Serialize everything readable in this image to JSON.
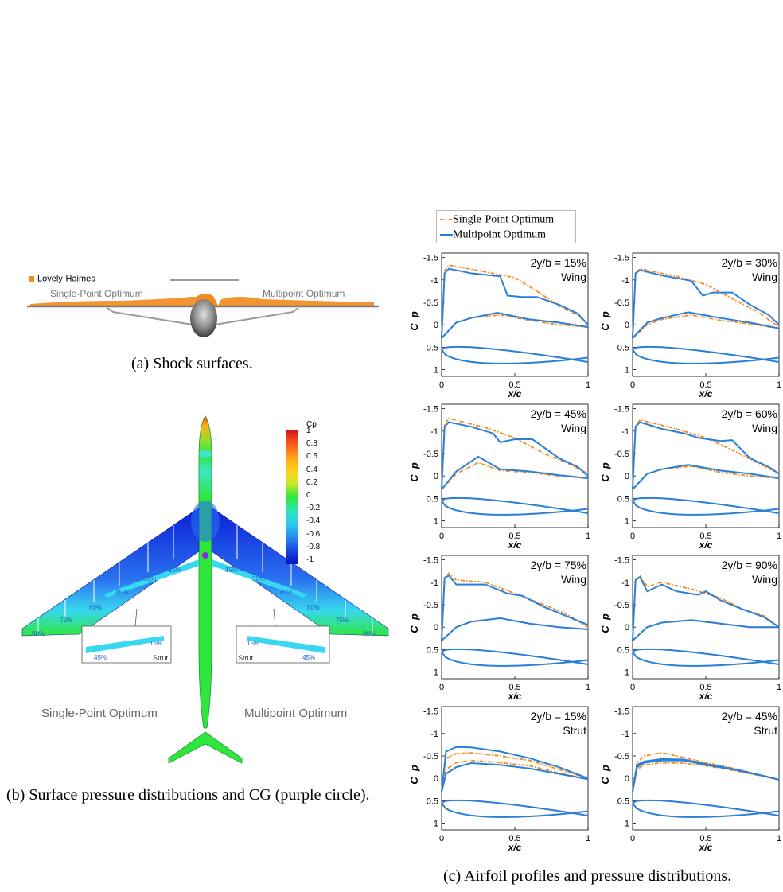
{
  "panel_a": {
    "legend_label": "Lovely-Haimes",
    "left_label": "Single-Point Optimum",
    "right_label": "Multipoint Optimum",
    "caption": "(a) Shock surfaces.",
    "colors": {
      "shock": "#f28a1e",
      "surface": "#9a9a9a"
    }
  },
  "panel_b": {
    "colorbar_title": "Cp",
    "colorbar_ticks": [
      "1",
      "0.8",
      "0.6",
      "0.4",
      "0.2",
      "0",
      "-0.2",
      "-0.4",
      "-0.6",
      "-0.8",
      "-1"
    ],
    "left_label": "Single-Point Optimum",
    "right_label": "Multipoint Optimum",
    "left_wing_stations": [
      "15%",
      "30%",
      "45%",
      "60%",
      "75%",
      "90%"
    ],
    "right_wing_stations": [
      "15%",
      "30%",
      "45%",
      "60%",
      "75%",
      "90%"
    ],
    "left_strut_stations": [
      "15%",
      "45%"
    ],
    "right_strut_stations": [
      "15%",
      "45%"
    ],
    "strut_label": "Strut",
    "caption": "(b) Surface pressure distributions and CG (purple circle).",
    "colors": {
      "cg": "#7e2fd8",
      "station": "#2563c9"
    }
  },
  "panel_c": {
    "caption": "(c) Airfoil profiles and pressure distributions.",
    "colors": {
      "single": "#f28a1e",
      "multi": "#2a7fd8"
    }
  },
  "chart_data": {
    "type": "line",
    "legend": [
      "Single-Point Optimum",
      "Multipoint Optimum"
    ],
    "legend_position": "top-left",
    "xlabel": "x/c",
    "ylabel": "C_p",
    "x_ticks": [
      "0",
      "0.5",
      "1"
    ],
    "y_ticks": [
      "-1.5",
      "-1",
      "-0.5",
      "0",
      "0.5",
      "1"
    ],
    "xlim": [
      0,
      1
    ],
    "ylim": [
      -1.6,
      1.15
    ],
    "y_inverted": true,
    "panels": [
      {
        "label": "2y/b = 15%",
        "component": "Wing",
        "single_upper": [
          [
            0.0,
            0.3
          ],
          [
            0.02,
            -1.2
          ],
          [
            0.05,
            -1.33
          ],
          [
            0.3,
            -1.18
          ],
          [
            0.5,
            -1.05
          ],
          [
            0.65,
            -0.75
          ],
          [
            0.8,
            -0.42
          ],
          [
            0.93,
            -0.22
          ],
          [
            1.0,
            0.0
          ]
        ],
        "multi_upper": [
          [
            0.0,
            0.3
          ],
          [
            0.02,
            -1.15
          ],
          [
            0.05,
            -1.25
          ],
          [
            0.2,
            -1.15
          ],
          [
            0.4,
            -1.08
          ],
          [
            0.45,
            -0.65
          ],
          [
            0.55,
            -0.62
          ],
          [
            0.65,
            -0.62
          ],
          [
            0.8,
            -0.45
          ],
          [
            0.93,
            -0.25
          ],
          [
            1.0,
            0.0
          ]
        ],
        "single_lower": [
          [
            0.0,
            0.3
          ],
          [
            0.1,
            -0.05
          ],
          [
            0.2,
            -0.15
          ],
          [
            0.4,
            -0.22
          ],
          [
            0.6,
            -0.1
          ],
          [
            0.8,
            0.0
          ],
          [
            1.0,
            0.05
          ]
        ],
        "multi_lower": [
          [
            0.0,
            0.3
          ],
          [
            0.1,
            -0.05
          ],
          [
            0.2,
            -0.15
          ],
          [
            0.38,
            -0.27
          ],
          [
            0.6,
            -0.12
          ],
          [
            0.8,
            -0.05
          ],
          [
            1.0,
            0.05
          ]
        ]
      },
      {
        "label": "2y/b = 30%",
        "component": "Wing",
        "single_upper": [
          [
            0.0,
            0.3
          ],
          [
            0.02,
            -1.15
          ],
          [
            0.05,
            -1.25
          ],
          [
            0.3,
            -1.08
          ],
          [
            0.5,
            -0.9
          ],
          [
            0.7,
            -0.55
          ],
          [
            0.85,
            -0.3
          ],
          [
            1.0,
            0.05
          ]
        ],
        "multi_upper": [
          [
            0.0,
            0.3
          ],
          [
            0.02,
            -1.15
          ],
          [
            0.05,
            -1.22
          ],
          [
            0.2,
            -1.1
          ],
          [
            0.4,
            -0.98
          ],
          [
            0.48,
            -0.65
          ],
          [
            0.55,
            -0.72
          ],
          [
            0.68,
            -0.72
          ],
          [
            0.8,
            -0.45
          ],
          [
            0.93,
            -0.22
          ],
          [
            1.0,
            0.0
          ]
        ],
        "single_lower": [
          [
            0.0,
            0.3
          ],
          [
            0.1,
            0.0
          ],
          [
            0.2,
            -0.12
          ],
          [
            0.4,
            -0.22
          ],
          [
            0.6,
            -0.1
          ],
          [
            0.8,
            -0.02
          ],
          [
            1.0,
            0.08
          ]
        ],
        "multi_lower": [
          [
            0.0,
            0.3
          ],
          [
            0.1,
            -0.05
          ],
          [
            0.2,
            -0.15
          ],
          [
            0.38,
            -0.28
          ],
          [
            0.6,
            -0.15
          ],
          [
            0.8,
            -0.05
          ],
          [
            1.0,
            0.08
          ]
        ]
      },
      {
        "label": "2y/b = 45%",
        "component": "Wing",
        "single_upper": [
          [
            0.0,
            0.3
          ],
          [
            0.02,
            -1.15
          ],
          [
            0.05,
            -1.28
          ],
          [
            0.3,
            -1.08
          ],
          [
            0.5,
            -0.85
          ],
          [
            0.7,
            -0.5
          ],
          [
            0.85,
            -0.3
          ],
          [
            1.0,
            -0.05
          ]
        ],
        "multi_upper": [
          [
            0.0,
            0.3
          ],
          [
            0.02,
            -1.1
          ],
          [
            0.05,
            -1.2
          ],
          [
            0.2,
            -1.1
          ],
          [
            0.35,
            -0.95
          ],
          [
            0.4,
            -0.75
          ],
          [
            0.5,
            -0.82
          ],
          [
            0.62,
            -0.82
          ],
          [
            0.8,
            -0.4
          ],
          [
            0.93,
            -0.2
          ],
          [
            1.0,
            0.0
          ]
        ],
        "single_lower": [
          [
            0.0,
            0.3
          ],
          [
            0.1,
            -0.05
          ],
          [
            0.25,
            -0.3
          ],
          [
            0.4,
            -0.12
          ],
          [
            0.6,
            -0.08
          ],
          [
            0.8,
            0.0
          ],
          [
            1.0,
            0.05
          ]
        ],
        "multi_lower": [
          [
            0.0,
            0.3
          ],
          [
            0.1,
            -0.1
          ],
          [
            0.25,
            -0.43
          ],
          [
            0.4,
            -0.15
          ],
          [
            0.6,
            -0.1
          ],
          [
            0.8,
            -0.02
          ],
          [
            1.0,
            0.05
          ]
        ]
      },
      {
        "label": "2y/b = 60%",
        "component": "Wing",
        "single_upper": [
          [
            0.0,
            0.3
          ],
          [
            0.02,
            -1.1
          ],
          [
            0.05,
            -1.25
          ],
          [
            0.3,
            -1.05
          ],
          [
            0.5,
            -0.85
          ],
          [
            0.7,
            -0.55
          ],
          [
            0.85,
            -0.3
          ],
          [
            1.0,
            -0.05
          ]
        ],
        "multi_upper": [
          [
            0.0,
            0.3
          ],
          [
            0.02,
            -1.1
          ],
          [
            0.05,
            -1.2
          ],
          [
            0.2,
            -1.05
          ],
          [
            0.35,
            -0.95
          ],
          [
            0.45,
            -0.85
          ],
          [
            0.6,
            -0.78
          ],
          [
            0.68,
            -0.8
          ],
          [
            0.8,
            -0.4
          ],
          [
            0.93,
            -0.2
          ],
          [
            1.0,
            -0.05
          ]
        ],
        "single_lower": [
          [
            0.0,
            0.3
          ],
          [
            0.1,
            -0.05
          ],
          [
            0.2,
            -0.15
          ],
          [
            0.4,
            -0.22
          ],
          [
            0.6,
            -0.08
          ],
          [
            0.8,
            0.0
          ],
          [
            1.0,
            0.05
          ]
        ],
        "multi_lower": [
          [
            0.0,
            0.3
          ],
          [
            0.1,
            -0.05
          ],
          [
            0.2,
            -0.15
          ],
          [
            0.38,
            -0.25
          ],
          [
            0.6,
            -0.12
          ],
          [
            0.8,
            -0.05
          ],
          [
            1.0,
            0.05
          ]
        ]
      },
      {
        "label": "2y/b = 75%",
        "component": "Wing",
        "single_upper": [
          [
            0.0,
            0.3
          ],
          [
            0.02,
            -1.1
          ],
          [
            0.05,
            -1.2
          ],
          [
            0.1,
            -1.05
          ],
          [
            0.3,
            -1.0
          ],
          [
            0.5,
            -0.75
          ],
          [
            0.7,
            -0.5
          ],
          [
            0.85,
            -0.3
          ],
          [
            1.0,
            0.0
          ]
        ],
        "multi_upper": [
          [
            0.0,
            0.3
          ],
          [
            0.02,
            -1.1
          ],
          [
            0.05,
            -1.15
          ],
          [
            0.1,
            -0.95
          ],
          [
            0.3,
            -0.95
          ],
          [
            0.45,
            -0.75
          ],
          [
            0.55,
            -0.7
          ],
          [
            0.7,
            -0.45
          ],
          [
            0.85,
            -0.25
          ],
          [
            1.0,
            -0.05
          ]
        ],
        "single_lower": [
          [
            0.0,
            0.3
          ],
          [
            0.1,
            0.0
          ],
          [
            0.2,
            -0.12
          ],
          [
            0.4,
            -0.2
          ],
          [
            0.6,
            -0.08
          ],
          [
            0.8,
            0.0
          ],
          [
            1.0,
            0.05
          ]
        ],
        "multi_lower": [
          [
            0.0,
            0.3
          ],
          [
            0.1,
            0.0
          ],
          [
            0.2,
            -0.12
          ],
          [
            0.4,
            -0.2
          ],
          [
            0.6,
            -0.08
          ],
          [
            0.8,
            0.0
          ],
          [
            1.0,
            0.05
          ]
        ]
      },
      {
        "label": "2y/b = 90%",
        "component": "Wing",
        "single_upper": [
          [
            0.0,
            0.3
          ],
          [
            0.02,
            -1.05
          ],
          [
            0.05,
            -1.15
          ],
          [
            0.1,
            -0.9
          ],
          [
            0.2,
            -1.0
          ],
          [
            0.4,
            -0.85
          ],
          [
            0.6,
            -0.65
          ],
          [
            0.75,
            -0.4
          ],
          [
            0.9,
            -0.25
          ],
          [
            1.0,
            0.0
          ]
        ],
        "multi_upper": [
          [
            0.0,
            0.3
          ],
          [
            0.02,
            -1.05
          ],
          [
            0.05,
            -1.12
          ],
          [
            0.1,
            -0.8
          ],
          [
            0.2,
            -0.95
          ],
          [
            0.3,
            -0.8
          ],
          [
            0.45,
            -0.72
          ],
          [
            0.5,
            -0.8
          ],
          [
            0.6,
            -0.6
          ],
          [
            0.75,
            -0.4
          ],
          [
            0.9,
            -0.22
          ],
          [
            1.0,
            0.0
          ]
        ],
        "single_lower": [
          [
            0.0,
            0.3
          ],
          [
            0.1,
            0.0
          ],
          [
            0.2,
            -0.1
          ],
          [
            0.4,
            -0.15
          ],
          [
            0.6,
            -0.08
          ],
          [
            0.8,
            0.0
          ],
          [
            1.0,
            0.0
          ]
        ],
        "multi_lower": [
          [
            0.0,
            0.3
          ],
          [
            0.1,
            0.0
          ],
          [
            0.2,
            -0.1
          ],
          [
            0.4,
            -0.16
          ],
          [
            0.6,
            -0.08
          ],
          [
            0.8,
            0.0
          ],
          [
            1.0,
            0.0
          ]
        ]
      },
      {
        "label": "2y/b = 15%",
        "component": "Strut",
        "single_upper": [
          [
            0.0,
            0.3
          ],
          [
            0.03,
            -0.45
          ],
          [
            0.1,
            -0.55
          ],
          [
            0.2,
            -0.57
          ],
          [
            0.4,
            -0.5
          ],
          [
            0.6,
            -0.4
          ],
          [
            0.8,
            -0.2
          ],
          [
            1.0,
            0.0
          ]
        ],
        "multi_upper": [
          [
            0.0,
            0.3
          ],
          [
            0.03,
            -0.6
          ],
          [
            0.1,
            -0.7
          ],
          [
            0.2,
            -0.69
          ],
          [
            0.4,
            -0.6
          ],
          [
            0.6,
            -0.45
          ],
          [
            0.8,
            -0.25
          ],
          [
            1.0,
            0.0
          ]
        ],
        "single_lower": [
          [
            0.0,
            0.3
          ],
          [
            0.03,
            -0.2
          ],
          [
            0.1,
            -0.35
          ],
          [
            0.2,
            -0.4
          ],
          [
            0.4,
            -0.35
          ],
          [
            0.6,
            -0.28
          ],
          [
            0.8,
            -0.12
          ],
          [
            1.0,
            0.02
          ]
        ],
        "multi_lower": [
          [
            0.0,
            0.3
          ],
          [
            0.03,
            -0.1
          ],
          [
            0.1,
            -0.25
          ],
          [
            0.2,
            -0.34
          ],
          [
            0.4,
            -0.3
          ],
          [
            0.6,
            -0.22
          ],
          [
            0.8,
            -0.1
          ],
          [
            1.0,
            0.02
          ]
        ]
      },
      {
        "label": "2y/b = 45%",
        "component": "Strut",
        "single_upper": [
          [
            0.0,
            0.3
          ],
          [
            0.03,
            -0.35
          ],
          [
            0.08,
            -0.5
          ],
          [
            0.2,
            -0.57
          ],
          [
            0.3,
            -0.5
          ],
          [
            0.5,
            -0.35
          ],
          [
            0.7,
            -0.22
          ],
          [
            0.9,
            -0.05
          ],
          [
            1.0,
            0.03
          ]
        ],
        "multi_upper": [
          [
            0.0,
            0.3
          ],
          [
            0.03,
            -0.3
          ],
          [
            0.08,
            -0.38
          ],
          [
            0.2,
            -0.43
          ],
          [
            0.35,
            -0.42
          ],
          [
            0.5,
            -0.32
          ],
          [
            0.7,
            -0.2
          ],
          [
            0.9,
            -0.05
          ],
          [
            1.0,
            0.03
          ]
        ],
        "single_lower": [
          [
            0.0,
            0.3
          ],
          [
            0.03,
            -0.2
          ],
          [
            0.08,
            -0.3
          ],
          [
            0.2,
            -0.35
          ],
          [
            0.35,
            -0.34
          ],
          [
            0.5,
            -0.28
          ],
          [
            0.7,
            -0.17
          ],
          [
            0.9,
            -0.04
          ],
          [
            1.0,
            0.03
          ]
        ],
        "multi_lower": [
          [
            0.0,
            0.3
          ],
          [
            0.03,
            -0.25
          ],
          [
            0.08,
            -0.35
          ],
          [
            0.2,
            -0.4
          ],
          [
            0.35,
            -0.4
          ],
          [
            0.5,
            -0.3
          ],
          [
            0.7,
            -0.19
          ],
          [
            0.9,
            -0.05
          ],
          [
            1.0,
            0.03
          ]
        ]
      }
    ]
  }
}
